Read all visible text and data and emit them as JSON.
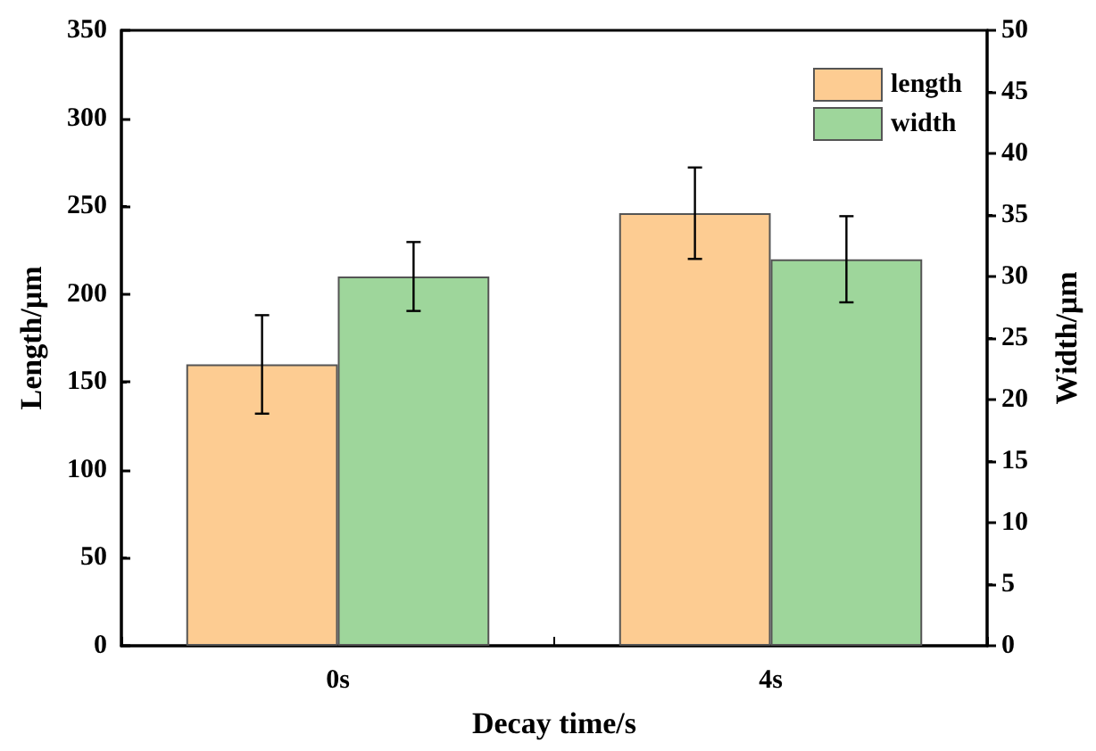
{
  "chart_data": {
    "type": "bar",
    "xlabel": "Decay time/s",
    "ylabel": "Length/μm",
    "y2label": "Width/μm",
    "categories": [
      "0s",
      "4s"
    ],
    "series": [
      {
        "name": "length",
        "color": "#fdcc92",
        "values": [
          160,
          246
        ],
        "errors": [
          28,
          26
        ]
      },
      {
        "name": "width",
        "color": "#9ed69b",
        "values": [
          30,
          31.4
        ],
        "errors": [
          2.8,
          3.5
        ],
        "axis": "y2"
      }
    ],
    "ylim": [
      0,
      350
    ],
    "yticks": [
      0,
      50,
      100,
      150,
      200,
      250,
      300,
      350
    ],
    "y2lim": [
      0,
      50
    ],
    "y2ticks": [
      0,
      5,
      10,
      15,
      20,
      25,
      30,
      35,
      40,
      45,
      50
    ],
    "legend": "top right",
    "grid": false
  }
}
